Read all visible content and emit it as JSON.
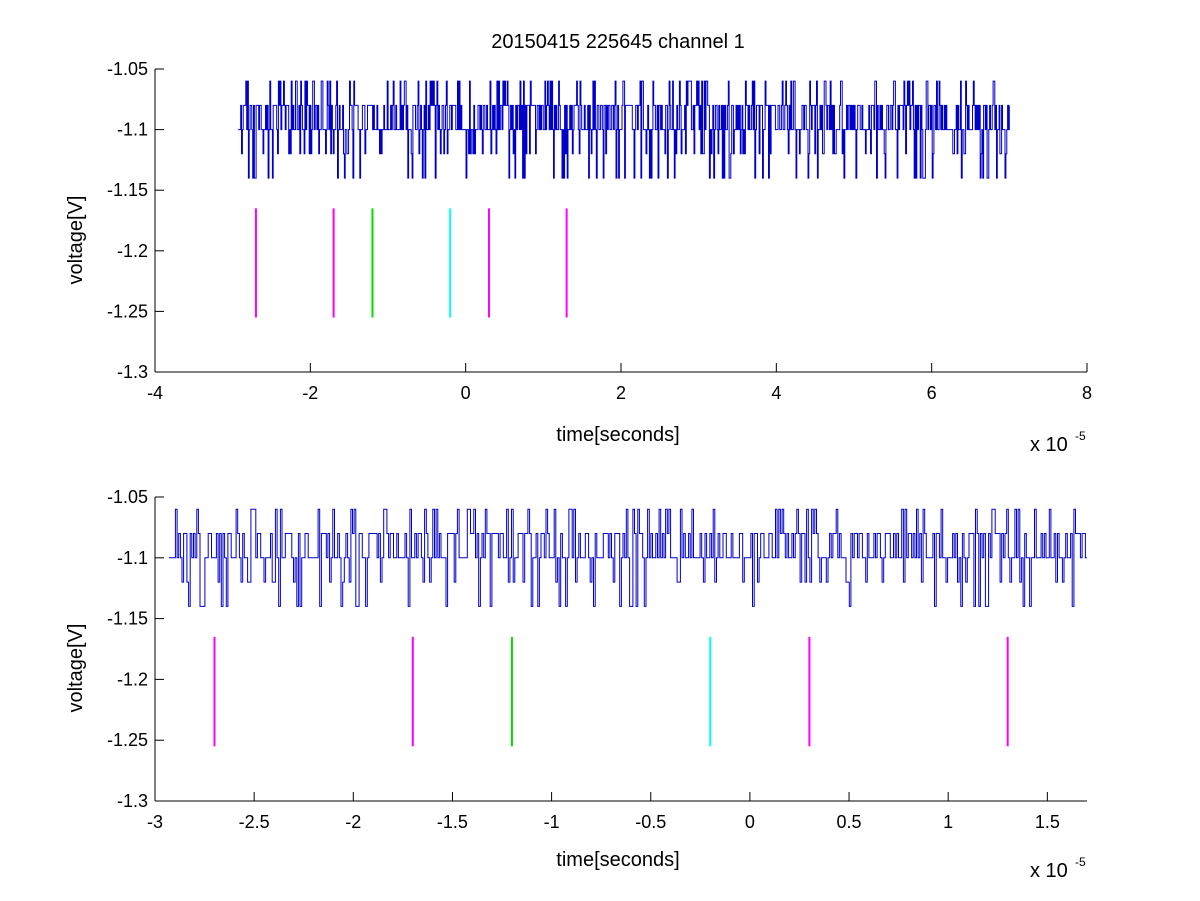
{
  "figure": {
    "title": "20150415 225645 channel 1"
  },
  "chart_data": [
    {
      "type": "line",
      "title": "20150415 225645 channel 1",
      "xlabel": "time[seconds]",
      "ylabel": "voltage[V]",
      "x_exponent_label": "x 10",
      "x_exponent": "-5",
      "xlim": [
        -4,
        8
      ],
      "ylim": [
        -1.3,
        -1.05
      ],
      "x_ticks": [
        -4,
        -2,
        0,
        2,
        4,
        6,
        8
      ],
      "y_ticks": [
        -1.3,
        -1.25,
        -1.2,
        -1.15,
        -1.1,
        -1.05
      ],
      "x_tick_labels": [
        "-4",
        "-2",
        "0",
        "2",
        "4",
        "6",
        "8"
      ],
      "y_tick_labels": [
        "-1.3",
        "-1.25",
        "-1.2",
        "-1.15",
        "-1.1",
        "-1.05"
      ],
      "signal": {
        "color": "#0000cc",
        "x_range": [
          -2.93,
          7.0
        ],
        "levels": [
          -1.14,
          -1.12,
          -1.1,
          -1.08,
          -1.06
        ],
        "baseline": -1.1
      },
      "markers": [
        {
          "x": -2.7,
          "y_from": -1.255,
          "y_to": -1.165,
          "color": "#ff00ff"
        },
        {
          "x": -1.7,
          "y_from": -1.255,
          "y_to": -1.165,
          "color": "#ff00ff"
        },
        {
          "x": -1.2,
          "y_from": -1.255,
          "y_to": -1.165,
          "color": "#00dd00"
        },
        {
          "x": -0.2,
          "y_from": -1.255,
          "y_to": -1.165,
          "color": "#00ffff"
        },
        {
          "x": 0.3,
          "y_from": -1.255,
          "y_to": -1.165,
          "color": "#ff00ff"
        },
        {
          "x": 1.3,
          "y_from": -1.255,
          "y_to": -1.165,
          "color": "#ff00ff"
        }
      ]
    },
    {
      "type": "line",
      "title": "",
      "xlabel": "time[seconds]",
      "ylabel": "voltage[V]",
      "x_exponent_label": "x 10",
      "x_exponent": "-5",
      "xlim": [
        -3.0,
        1.7
      ],
      "ylim": [
        -1.3,
        -1.05
      ],
      "x_ticks": [
        -3,
        -2.5,
        -2,
        -1.5,
        -1,
        -0.5,
        0,
        0.5,
        1,
        1.5
      ],
      "y_ticks": [
        -1.3,
        -1.25,
        -1.2,
        -1.15,
        -1.1,
        -1.05
      ],
      "x_tick_labels": [
        "-3",
        "-2.5",
        "-2",
        "-1.5",
        "-1",
        "-0.5",
        "0",
        "0.5",
        "1",
        "1.5"
      ],
      "y_tick_labels": [
        "-1.3",
        "-1.25",
        "-1.2",
        "-1.15",
        "-1.1",
        "-1.05"
      ],
      "signal": {
        "color": "#0000cc",
        "x_range": [
          -2.93,
          1.7
        ],
        "levels": [
          -1.14,
          -1.12,
          -1.1,
          -1.08,
          -1.06
        ],
        "baseline": -1.1
      },
      "markers": [
        {
          "x": -2.7,
          "y_from": -1.255,
          "y_to": -1.165,
          "color": "#ff00ff"
        },
        {
          "x": -1.7,
          "y_from": -1.255,
          "y_to": -1.165,
          "color": "#ff00ff"
        },
        {
          "x": -1.2,
          "y_from": -1.255,
          "y_to": -1.165,
          "color": "#00dd00"
        },
        {
          "x": -0.2,
          "y_from": -1.255,
          "y_to": -1.165,
          "color": "#00ffff"
        },
        {
          "x": 0.3,
          "y_from": -1.255,
          "y_to": -1.165,
          "color": "#ff00ff"
        },
        {
          "x": 1.3,
          "y_from": -1.255,
          "y_to": -1.165,
          "color": "#ff00ff"
        }
      ]
    }
  ]
}
